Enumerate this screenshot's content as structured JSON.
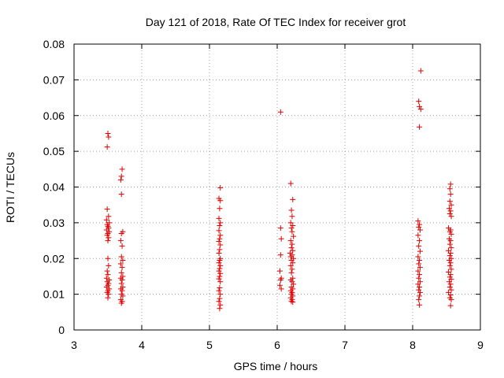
{
  "chart_data": {
    "type": "scatter",
    "title": "Day 121 of 2018, Rate Of TEC Index for receiver grot",
    "xlabel": "GPS time / hours",
    "ylabel": "ROTI / TECUs",
    "xlim": [
      3,
      9
    ],
    "ylim": [
      0,
      0.08
    ],
    "xticks": [
      "3",
      "4",
      "5",
      "6",
      "7",
      "8",
      "9"
    ],
    "yticks": [
      "0",
      "0.01",
      "0.02",
      "0.03",
      "0.04",
      "0.05",
      "0.06",
      "0.07",
      "0.08"
    ],
    "grid": "dotted",
    "marker": "plus",
    "color": "#e00000",
    "points": [
      {
        "x": 3.5,
        "y": 0.055
      },
      {
        "x": 3.51,
        "y": 0.054
      },
      {
        "x": 3.49,
        "y": 0.0512
      },
      {
        "x": 3.49,
        "y": 0.0338
      },
      {
        "x": 3.51,
        "y": 0.0318
      },
      {
        "x": 3.48,
        "y": 0.0308
      },
      {
        "x": 3.52,
        "y": 0.03
      },
      {
        "x": 3.49,
        "y": 0.0295
      },
      {
        "x": 3.5,
        "y": 0.029
      },
      {
        "x": 3.51,
        "y": 0.0285
      },
      {
        "x": 3.48,
        "y": 0.028
      },
      {
        "x": 3.52,
        "y": 0.0275
      },
      {
        "x": 3.5,
        "y": 0.027
      },
      {
        "x": 3.49,
        "y": 0.0265
      },
      {
        "x": 3.51,
        "y": 0.0258
      },
      {
        "x": 3.5,
        "y": 0.025
      },
      {
        "x": 3.5,
        "y": 0.02
      },
      {
        "x": 3.51,
        "y": 0.018
      },
      {
        "x": 3.49,
        "y": 0.0165
      },
      {
        "x": 3.5,
        "y": 0.0155
      },
      {
        "x": 3.48,
        "y": 0.0145
      },
      {
        "x": 3.52,
        "y": 0.014
      },
      {
        "x": 3.49,
        "y": 0.0135
      },
      {
        "x": 3.51,
        "y": 0.013
      },
      {
        "x": 3.5,
        "y": 0.0125
      },
      {
        "x": 3.48,
        "y": 0.012
      },
      {
        "x": 3.52,
        "y": 0.0115
      },
      {
        "x": 3.5,
        "y": 0.011
      },
      {
        "x": 3.49,
        "y": 0.0105
      },
      {
        "x": 3.51,
        "y": 0.01
      },
      {
        "x": 3.5,
        "y": 0.009
      },
      {
        "x": 3.71,
        "y": 0.045
      },
      {
        "x": 3.7,
        "y": 0.043
      },
      {
        "x": 3.69,
        "y": 0.042
      },
      {
        "x": 3.7,
        "y": 0.038
      },
      {
        "x": 3.72,
        "y": 0.0275
      },
      {
        "x": 3.7,
        "y": 0.027
      },
      {
        "x": 3.69,
        "y": 0.025
      },
      {
        "x": 3.71,
        "y": 0.0235
      },
      {
        "x": 3.7,
        "y": 0.0205
      },
      {
        "x": 3.72,
        "y": 0.0195
      },
      {
        "x": 3.69,
        "y": 0.0185
      },
      {
        "x": 3.71,
        "y": 0.0175
      },
      {
        "x": 3.7,
        "y": 0.016
      },
      {
        "x": 3.72,
        "y": 0.015
      },
      {
        "x": 3.69,
        "y": 0.0145
      },
      {
        "x": 3.71,
        "y": 0.014
      },
      {
        "x": 3.7,
        "y": 0.013
      },
      {
        "x": 3.72,
        "y": 0.012
      },
      {
        "x": 3.69,
        "y": 0.0115
      },
      {
        "x": 3.71,
        "y": 0.011
      },
      {
        "x": 3.7,
        "y": 0.01
      },
      {
        "x": 3.72,
        "y": 0.0095
      },
      {
        "x": 3.69,
        "y": 0.0085
      },
      {
        "x": 3.71,
        "y": 0.008
      },
      {
        "x": 3.7,
        "y": 0.0075
      },
      {
        "x": 5.16,
        "y": 0.0398
      },
      {
        "x": 5.14,
        "y": 0.0368
      },
      {
        "x": 5.16,
        "y": 0.0362
      },
      {
        "x": 5.15,
        "y": 0.034
      },
      {
        "x": 5.14,
        "y": 0.0312
      },
      {
        "x": 5.16,
        "y": 0.03
      },
      {
        "x": 5.15,
        "y": 0.0292
      },
      {
        "x": 5.14,
        "y": 0.0278
      },
      {
        "x": 5.16,
        "y": 0.0265
      },
      {
        "x": 5.15,
        "y": 0.0255
      },
      {
        "x": 5.14,
        "y": 0.0248
      },
      {
        "x": 5.16,
        "y": 0.0238
      },
      {
        "x": 5.15,
        "y": 0.0225
      },
      {
        "x": 5.14,
        "y": 0.0215
      },
      {
        "x": 5.16,
        "y": 0.02
      },
      {
        "x": 5.15,
        "y": 0.0195
      },
      {
        "x": 5.14,
        "y": 0.0188
      },
      {
        "x": 5.16,
        "y": 0.018
      },
      {
        "x": 5.15,
        "y": 0.0172
      },
      {
        "x": 5.14,
        "y": 0.0165
      },
      {
        "x": 5.16,
        "y": 0.0158
      },
      {
        "x": 5.15,
        "y": 0.015
      },
      {
        "x": 5.14,
        "y": 0.0143
      },
      {
        "x": 5.16,
        "y": 0.0135
      },
      {
        "x": 5.15,
        "y": 0.0118
      },
      {
        "x": 5.14,
        "y": 0.011
      },
      {
        "x": 5.16,
        "y": 0.01
      },
      {
        "x": 5.15,
        "y": 0.0088
      },
      {
        "x": 5.14,
        "y": 0.008
      },
      {
        "x": 5.16,
        "y": 0.007
      },
      {
        "x": 5.15,
        "y": 0.006
      },
      {
        "x": 6.05,
        "y": 0.061
      },
      {
        "x": 6.05,
        "y": 0.0285
      },
      {
        "x": 6.06,
        "y": 0.0255
      },
      {
        "x": 6.05,
        "y": 0.021
      },
      {
        "x": 6.04,
        "y": 0.0165
      },
      {
        "x": 6.06,
        "y": 0.0145
      },
      {
        "x": 6.05,
        "y": 0.014
      },
      {
        "x": 6.04,
        "y": 0.0125
      },
      {
        "x": 6.06,
        "y": 0.0115
      },
      {
        "x": 6.2,
        "y": 0.041
      },
      {
        "x": 6.23,
        "y": 0.0365
      },
      {
        "x": 6.21,
        "y": 0.0335
      },
      {
        "x": 6.22,
        "y": 0.0318
      },
      {
        "x": 6.2,
        "y": 0.03
      },
      {
        "x": 6.23,
        "y": 0.0292
      },
      {
        "x": 6.21,
        "y": 0.0285
      },
      {
        "x": 6.22,
        "y": 0.0275
      },
      {
        "x": 6.24,
        "y": 0.0262
      },
      {
        "x": 6.2,
        "y": 0.025
      },
      {
        "x": 6.22,
        "y": 0.024
      },
      {
        "x": 6.21,
        "y": 0.023
      },
      {
        "x": 6.23,
        "y": 0.0222
      },
      {
        "x": 6.19,
        "y": 0.0215
      },
      {
        "x": 6.22,
        "y": 0.021
      },
      {
        "x": 6.2,
        "y": 0.0205
      },
      {
        "x": 6.24,
        "y": 0.02
      },
      {
        "x": 6.21,
        "y": 0.0195
      },
      {
        "x": 6.23,
        "y": 0.0188
      },
      {
        "x": 6.2,
        "y": 0.018
      },
      {
        "x": 6.22,
        "y": 0.017
      },
      {
        "x": 6.21,
        "y": 0.016
      },
      {
        "x": 6.23,
        "y": 0.0145
      },
      {
        "x": 6.2,
        "y": 0.014
      },
      {
        "x": 6.22,
        "y": 0.0135
      },
      {
        "x": 6.24,
        "y": 0.0128
      },
      {
        "x": 6.21,
        "y": 0.012
      },
      {
        "x": 6.23,
        "y": 0.0115
      },
      {
        "x": 6.2,
        "y": 0.011
      },
      {
        "x": 6.22,
        "y": 0.0105
      },
      {
        "x": 6.21,
        "y": 0.01
      },
      {
        "x": 6.23,
        "y": 0.0095
      },
      {
        "x": 6.2,
        "y": 0.009
      },
      {
        "x": 6.22,
        "y": 0.0085
      },
      {
        "x": 6.21,
        "y": 0.008
      },
      {
        "x": 6.23,
        "y": 0.0078
      },
      {
        "x": 8.12,
        "y": 0.0725
      },
      {
        "x": 8.09,
        "y": 0.064
      },
      {
        "x": 8.1,
        "y": 0.0625
      },
      {
        "x": 8.12,
        "y": 0.0618
      },
      {
        "x": 8.1,
        "y": 0.0568
      },
      {
        "x": 8.08,
        "y": 0.0305
      },
      {
        "x": 8.1,
        "y": 0.0295
      },
      {
        "x": 8.09,
        "y": 0.0288
      },
      {
        "x": 8.11,
        "y": 0.028
      },
      {
        "x": 8.08,
        "y": 0.0265
      },
      {
        "x": 8.1,
        "y": 0.025
      },
      {
        "x": 8.09,
        "y": 0.0235
      },
      {
        "x": 8.11,
        "y": 0.022
      },
      {
        "x": 8.08,
        "y": 0.0205
      },
      {
        "x": 8.1,
        "y": 0.0195
      },
      {
        "x": 8.09,
        "y": 0.0185
      },
      {
        "x": 8.11,
        "y": 0.0175
      },
      {
        "x": 8.08,
        "y": 0.0165
      },
      {
        "x": 8.1,
        "y": 0.0155
      },
      {
        "x": 8.09,
        "y": 0.0145
      },
      {
        "x": 8.11,
        "y": 0.0135
      },
      {
        "x": 8.08,
        "y": 0.0128
      },
      {
        "x": 8.1,
        "y": 0.012
      },
      {
        "x": 8.09,
        "y": 0.0112
      },
      {
        "x": 8.11,
        "y": 0.0105
      },
      {
        "x": 8.1,
        "y": 0.0095
      },
      {
        "x": 8.09,
        "y": 0.0085
      },
      {
        "x": 8.1,
        "y": 0.007
      },
      {
        "x": 8.56,
        "y": 0.0408
      },
      {
        "x": 8.55,
        "y": 0.0395
      },
      {
        "x": 8.56,
        "y": 0.038
      },
      {
        "x": 8.55,
        "y": 0.036
      },
      {
        "x": 8.57,
        "y": 0.035
      },
      {
        "x": 8.54,
        "y": 0.034
      },
      {
        "x": 8.56,
        "y": 0.0333
      },
      {
        "x": 8.55,
        "y": 0.0325
      },
      {
        "x": 8.57,
        "y": 0.0318
      },
      {
        "x": 8.53,
        "y": 0.0285
      },
      {
        "x": 8.56,
        "y": 0.028
      },
      {
        "x": 8.55,
        "y": 0.0275
      },
      {
        "x": 8.57,
        "y": 0.0268
      },
      {
        "x": 8.54,
        "y": 0.0255
      },
      {
        "x": 8.56,
        "y": 0.025
      },
      {
        "x": 8.55,
        "y": 0.024
      },
      {
        "x": 8.57,
        "y": 0.023
      },
      {
        "x": 8.53,
        "y": 0.0222
      },
      {
        "x": 8.56,
        "y": 0.0215
      },
      {
        "x": 8.55,
        "y": 0.0208
      },
      {
        "x": 8.57,
        "y": 0.02
      },
      {
        "x": 8.54,
        "y": 0.0195
      },
      {
        "x": 8.56,
        "y": 0.0188
      },
      {
        "x": 8.55,
        "y": 0.018
      },
      {
        "x": 8.57,
        "y": 0.017
      },
      {
        "x": 8.53,
        "y": 0.0162
      },
      {
        "x": 8.56,
        "y": 0.0155
      },
      {
        "x": 8.55,
        "y": 0.0148
      },
      {
        "x": 8.57,
        "y": 0.0142
      },
      {
        "x": 8.54,
        "y": 0.0135
      },
      {
        "x": 8.56,
        "y": 0.0128
      },
      {
        "x": 8.55,
        "y": 0.012
      },
      {
        "x": 8.57,
        "y": 0.0112
      },
      {
        "x": 8.53,
        "y": 0.0105
      },
      {
        "x": 8.56,
        "y": 0.0098
      },
      {
        "x": 8.55,
        "y": 0.009
      },
      {
        "x": 8.57,
        "y": 0.0085
      },
      {
        "x": 8.56,
        "y": 0.0068
      }
    ]
  }
}
